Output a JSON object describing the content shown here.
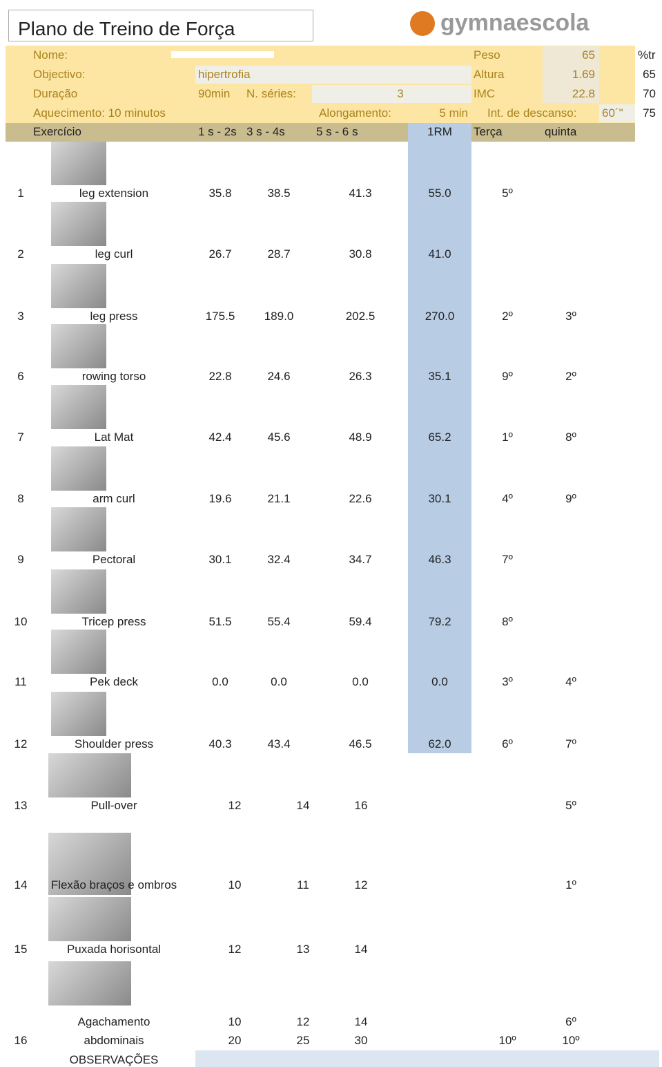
{
  "header": {
    "title": "Plano de Treino de Força",
    "logo": "gymnaescola"
  },
  "info": {
    "name_label": "Nome:",
    "objective_label": "Objectivo:",
    "objective": "hipertrofia",
    "duration_label": "Duração",
    "duration": "90min",
    "series_label": "N. séries:",
    "series": "3",
    "warmup": "Aquecimento: 10 minutos",
    "stretch_label": "Alongamento:",
    "stretch": "5 min",
    "rest_label": "Int. de descanso:",
    "rest": "60´\"",
    "weight_label": "Peso",
    "weight": "65",
    "height_label": "Altura",
    "height": "1.69",
    "bmi_label": "IMC",
    "bmi": "22.8",
    "percent_label": "%tr",
    "percents": [
      "65",
      "70",
      "75"
    ]
  },
  "table": {
    "columns": [
      "Exercício",
      "1 s - 2s",
      "3 s - 4s",
      "5 s - 6 s",
      "1RM",
      "Terça",
      "quinta"
    ],
    "rows": [
      [
        "1",
        "leg extension",
        "35.8",
        "38.5",
        "41.3",
        "55.0",
        "5º",
        null
      ],
      [
        "2",
        "leg curl",
        "26.7",
        "28.7",
        "30.8",
        "41.0",
        null,
        null
      ],
      [
        "3",
        "leg press",
        "175.5",
        "189.0",
        "202.5",
        "270.0",
        "2º",
        "3º"
      ],
      [
        "6",
        "rowing torso",
        "22.8",
        "24.6",
        "26.3",
        "35.1",
        "9º",
        "2º"
      ],
      [
        "7",
        "Lat Mat",
        "42.4",
        "45.6",
        "48.9",
        "65.2",
        "1º",
        "8º"
      ],
      [
        "8",
        "arm curl",
        "19.6",
        "21.1",
        "22.6",
        "30.1",
        "4º",
        "9º"
      ],
      [
        "9",
        "Pectoral",
        "30.1",
        "32.4",
        "34.7",
        "46.3",
        "7º",
        null
      ],
      [
        "10",
        "Tricep press",
        "51.5",
        "55.4",
        "59.4",
        "79.2",
        "8º",
        null
      ],
      [
        "11",
        "Pek deck",
        "0.0",
        "0.0",
        "0.0",
        "0.0",
        "3º",
        "4º"
      ],
      [
        "12",
        "Shoulder press",
        "40.3",
        "43.4",
        "46.5",
        "62.0",
        "6º",
        "7º"
      ],
      [
        "13",
        "Pull-over",
        "12",
        "14",
        "16",
        null,
        null,
        "5º"
      ],
      [
        "14",
        "Flexão braços e ombros",
        "10",
        "11",
        "12",
        null,
        null,
        "1º"
      ],
      [
        "15",
        "Puxada horisontal",
        "12",
        "13",
        "14",
        null,
        null,
        null
      ],
      [
        null,
        "Agachamento",
        "10",
        "12",
        "14",
        null,
        null,
        "6º"
      ],
      [
        "16",
        "abdominais",
        "20",
        "25",
        "30",
        null,
        "10º",
        "10º"
      ]
    ]
  },
  "footer": {
    "observations": "OBSERVAÇÕES"
  }
}
